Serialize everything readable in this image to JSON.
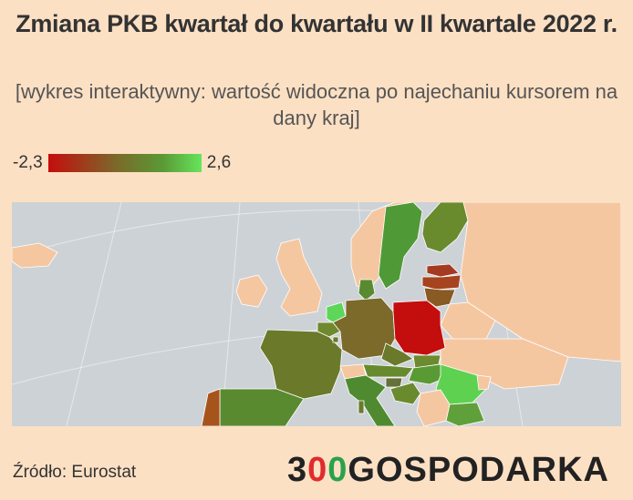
{
  "title": "Zmiana PKB kwartał do kwartału w II kwartale 2022 r.",
  "subtitle": "[wykres interaktywny: wartość widoczna po najechaniu kursorem na dany kraj]",
  "legend": {
    "min_label": "-2,3",
    "max_label": "2,6",
    "min_color": "#c40d0d",
    "max_color": "#66e55c"
  },
  "map": {
    "background": "#cdd2d6",
    "no_data_color": "#f5c7a1"
  },
  "source": "Źródło: Eurostat",
  "brand": {
    "prefix": "3",
    "logo_circle_1": "0",
    "logo_circle_2": "0",
    "suffix": "GOSPODARKA",
    "colors": [
      "#e02b2b",
      "#2aa24a"
    ]
  }
}
